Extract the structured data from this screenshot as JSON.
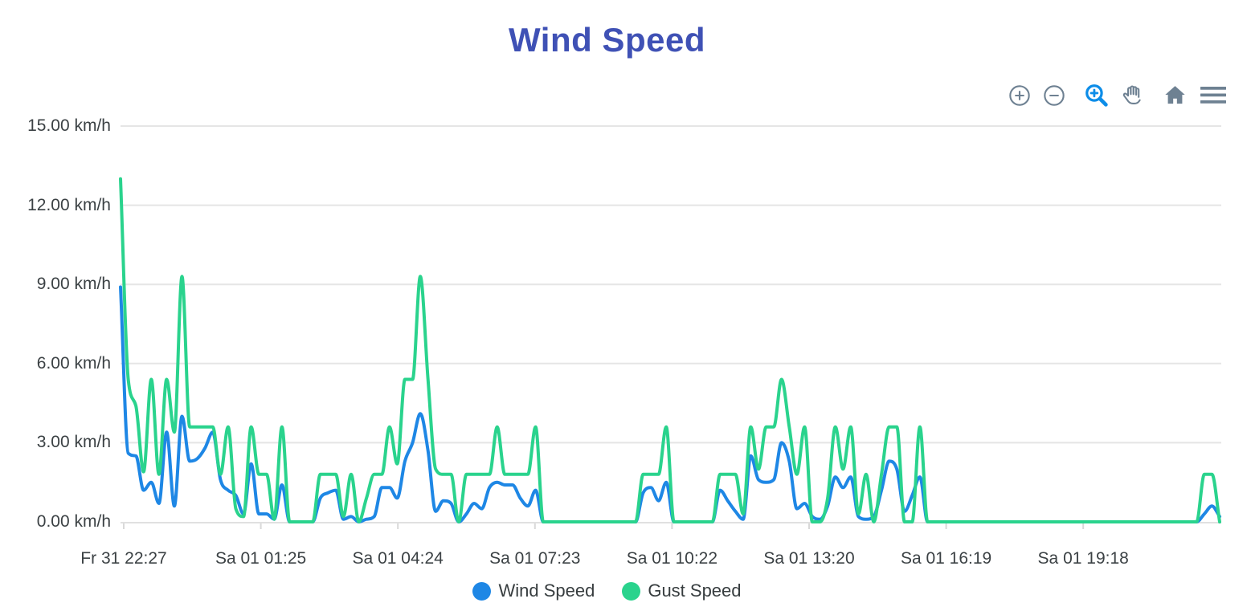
{
  "title": "Wind Speed",
  "toolbar": {
    "icon_color": "#6E8192",
    "active_color": "#0D8DE8",
    "buttons": [
      {
        "name": "zoom-in",
        "icon": "circle-plus-icon",
        "active": false
      },
      {
        "name": "zoom-out",
        "icon": "circle-minus-icon",
        "active": false
      },
      {
        "name": "selection-zoom",
        "icon": "magnifier-plus-icon",
        "active": true
      },
      {
        "name": "pan",
        "icon": "hand-icon",
        "active": false
      },
      {
        "name": "reset-zoom",
        "icon": "home-icon",
        "active": false
      },
      {
        "name": "menu",
        "icon": "hamburger-icon",
        "active": false
      }
    ]
  },
  "legend": {
    "items": [
      {
        "label": "Wind Speed",
        "color": "#1E87E5"
      },
      {
        "label": "Gust Speed",
        "color": "#2AD38D"
      }
    ]
  },
  "chart_data": {
    "type": "line",
    "title": "Wind Speed",
    "unit": "km/h",
    "curve": "smooth",
    "grid": "horizontal",
    "legend_position": "bottom",
    "ylim": [
      0,
      15
    ],
    "y_tick_values": [
      15,
      12,
      9,
      6,
      3,
      0
    ],
    "y_tick_labels": [
      "15.00 km/h",
      "12.00 km/h",
      "9.00 km/h",
      "6.00 km/h",
      "3.00 km/h",
      "0.00 km/h"
    ],
    "x_tick_labels": [
      "Fr 31 22:27",
      "Sa 01 01:25",
      "Sa 01 04:24",
      "Sa 01 07:23",
      "Sa 01 10:22",
      "Sa 01 13:20",
      "Sa 01 16:19",
      "Sa 01 19:18"
    ],
    "interval_minutes": 10,
    "series": [
      {
        "name": "Wind Speed",
        "color": "#1E87E5",
        "values": [
          8.9,
          2.6,
          2.5,
          1.2,
          1.5,
          0.7,
          3.4,
          0.6,
          4.0,
          2.3,
          2.4,
          2.8,
          3.4,
          1.6,
          1.2,
          1.0,
          0.3,
          2.2,
          0.3,
          0.3,
          0.1,
          1.4,
          0,
          0,
          0,
          0,
          0.9,
          1.1,
          1.2,
          0.1,
          0.2,
          0,
          0.1,
          0.2,
          1.3,
          1.3,
          0.9,
          2.3,
          3.0,
          4.1,
          2.7,
          0.4,
          0.8,
          0.7,
          0,
          0.3,
          0.7,
          0.5,
          1.3,
          1.5,
          1.4,
          1.4,
          0.9,
          0.6,
          1.2,
          0,
          0,
          0,
          0,
          0,
          0,
          0,
          0,
          0,
          0,
          0,
          0,
          0,
          1.1,
          1.3,
          0.8,
          1.5,
          0,
          0,
          0,
          0,
          0,
          0,
          1.2,
          0.8,
          0.4,
          0.1,
          2.5,
          1.6,
          1.5,
          1.6,
          3.0,
          2.3,
          0.5,
          0.7,
          0.2,
          0.1,
          0.6,
          1.7,
          1.3,
          1.7,
          0.2,
          0.1,
          0.2,
          1.2,
          2.3,
          2.0,
          0.4,
          1.0,
          1.7,
          0,
          0,
          0,
          0,
          0,
          0,
          0,
          0,
          0,
          0,
          0,
          0,
          0,
          0,
          0,
          0,
          0,
          0,
          0,
          0,
          0,
          0,
          0,
          0,
          0,
          0,
          0,
          0,
          0,
          0,
          0,
          0,
          0,
          0,
          0,
          0,
          0.3,
          0.6,
          0.2
        ]
      },
      {
        "name": "Gust Speed",
        "color": "#2AD38D",
        "values": [
          13,
          5.4,
          4.4,
          1.9,
          5.4,
          1.8,
          5.4,
          3.4,
          9.3,
          3.6,
          3.6,
          3.6,
          3.6,
          1.8,
          3.6,
          0.5,
          0.2,
          3.6,
          1.8,
          1.8,
          0.1,
          3.6,
          0,
          0,
          0,
          0,
          1.8,
          1.8,
          1.8,
          0.2,
          1.8,
          0,
          0.9,
          1.8,
          1.8,
          3.6,
          2.2,
          5.4,
          5.4,
          9.3,
          5.4,
          2.0,
          1.8,
          1.8,
          0,
          1.8,
          1.8,
          1.8,
          1.8,
          3.6,
          1.8,
          1.8,
          1.8,
          1.8,
          3.6,
          0,
          0,
          0,
          0,
          0,
          0,
          0,
          0,
          0,
          0,
          0,
          0,
          0,
          1.8,
          1.8,
          1.8,
          3.6,
          0,
          0,
          0,
          0,
          0,
          0,
          1.8,
          1.8,
          1.8,
          0.3,
          3.6,
          2.0,
          3.6,
          3.6,
          5.4,
          3.6,
          1.8,
          3.6,
          0,
          0,
          0.9,
          3.6,
          2.0,
          3.6,
          0.3,
          1.8,
          0,
          1.8,
          3.6,
          3.6,
          0,
          0,
          3.6,
          0,
          0,
          0,
          0,
          0,
          0,
          0,
          0,
          0,
          0,
          0,
          0,
          0,
          0,
          0,
          0,
          0,
          0,
          0,
          0,
          0,
          0,
          0,
          0,
          0,
          0,
          0,
          0,
          0,
          0,
          0,
          0,
          0,
          0,
          0,
          0,
          1.8,
          1.8,
          0
        ]
      }
    ]
  }
}
